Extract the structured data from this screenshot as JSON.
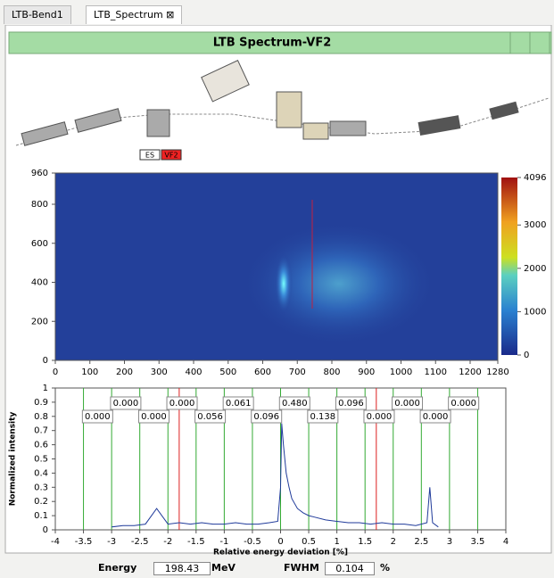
{
  "tabs": [
    "LTB-Bend1",
    "LTB_Spectrum"
  ],
  "panel": {
    "title": "LTB Spectrum-VF2"
  },
  "beamline": {
    "labels": [
      "ES",
      "VF2"
    ]
  },
  "image": {
    "xlim": [
      0,
      1280
    ],
    "ylim": [
      0,
      960
    ],
    "xticks": [
      0,
      100,
      200,
      300,
      400,
      500,
      600,
      700,
      800,
      900,
      1000,
      1100,
      1200,
      1280
    ],
    "yticks": [
      0,
      200,
      400,
      600,
      800,
      960
    ],
    "colorbar": {
      "lim": [
        0,
        4096
      ],
      "ticks": [
        0,
        1000,
        2000,
        3000,
        4096
      ]
    }
  },
  "spectrum": {
    "xlabel": "Relative energy deviation [%]",
    "ylabel": "Normalized intensity",
    "xlim": [
      -4,
      4
    ],
    "ylim": [
      0,
      1
    ],
    "xticks": [
      -4,
      -3.5,
      -3,
      -2.5,
      -2,
      -1.5,
      -1,
      -0.5,
      0,
      0.5,
      1,
      1.5,
      2,
      2.5,
      3,
      3.5,
      4
    ],
    "yticks": [
      0,
      0.1,
      0.2,
      0.3,
      0.4,
      0.5,
      0.6,
      0.7,
      0.8,
      0.9,
      1
    ],
    "bin_edges": [
      -3.5,
      -3,
      -2.5,
      -2,
      -1.5,
      -1,
      -0.5,
      0,
      0.5,
      1,
      1.5,
      2,
      2.5,
      3,
      3.5
    ],
    "bin_labels": [
      "0.000",
      "0.000",
      "0.000",
      "0.000",
      "0.056",
      "0.061",
      "0.096",
      "0.480",
      "0.138",
      "0.096",
      "0.000",
      "0.000",
      "0.000",
      "0.000"
    ],
    "red_lines": [
      -1.8,
      1.7
    ],
    "curve": {
      "color": "#1f3a9a",
      "x": [
        -3,
        -2.8,
        -2.6,
        -2.4,
        -2.2,
        -2,
        -1.8,
        -1.6,
        -1.4,
        -1.2,
        -1,
        -0.8,
        -0.6,
        -0.4,
        -0.2,
        -0.05,
        0,
        0.02,
        0.05,
        0.1,
        0.15,
        0.2,
        0.3,
        0.4,
        0.5,
        0.6,
        0.8,
        1,
        1.2,
        1.4,
        1.6,
        1.8,
        2,
        2.2,
        2.4,
        2.6,
        2.65,
        2.7,
        2.8
      ],
      "y": [
        0.02,
        0.03,
        0.03,
        0.04,
        0.15,
        0.04,
        0.05,
        0.04,
        0.05,
        0.04,
        0.04,
        0.05,
        0.04,
        0.04,
        0.05,
        0.06,
        0.3,
        0.75,
        0.6,
        0.4,
        0.3,
        0.22,
        0.15,
        0.12,
        0.1,
        0.09,
        0.07,
        0.06,
        0.05,
        0.05,
        0.04,
        0.05,
        0.04,
        0.04,
        0.03,
        0.05,
        0.3,
        0.05,
        0.02
      ]
    }
  },
  "footer": {
    "energy_label": "Energy",
    "energy": "198.43",
    "energy_unit": "MeV",
    "fwhm_label": "FWHM",
    "fwhm": "0.104",
    "fwhm_unit": "%"
  }
}
